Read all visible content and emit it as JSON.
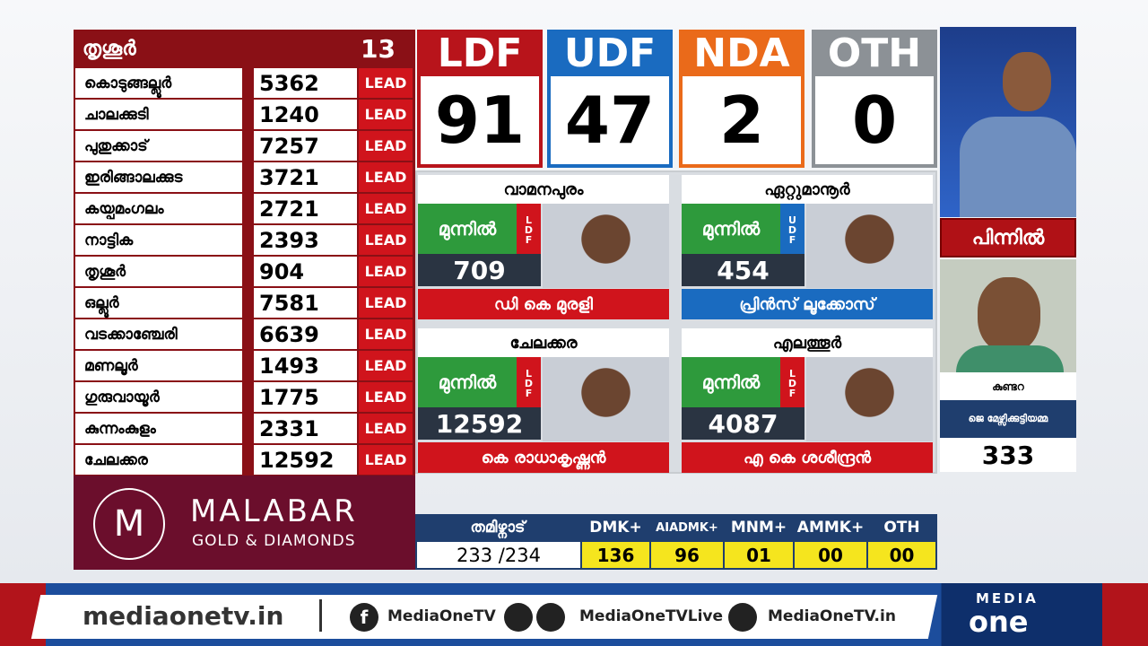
{
  "district": {
    "name": "തൃശൂർ",
    "count": "13",
    "rows": [
      {
        "name": "കൊടുങ്ങല്ലൂർ",
        "margin": "5362",
        "status": "LEAD"
      },
      {
        "name": "ചാലക്കുടി",
        "margin": "1240",
        "status": "LEAD"
      },
      {
        "name": "പുതുക്കാട്",
        "margin": "7257",
        "status": "LEAD"
      },
      {
        "name": "ഇരിങ്ങാലക്കുട",
        "margin": "3721",
        "status": "LEAD"
      },
      {
        "name": "കയ്പമംഗലം",
        "margin": "2721",
        "status": "LEAD"
      },
      {
        "name": "നാട്ടിക",
        "margin": "2393",
        "status": "LEAD"
      },
      {
        "name": "തൃശൂർ",
        "margin": "904",
        "status": "LEAD"
      },
      {
        "name": "ഒല്ലൂർ",
        "margin": "7581",
        "status": "LEAD"
      },
      {
        "name": "വടക്കാഞ്ചേരി",
        "margin": "6639",
        "status": "LEAD"
      },
      {
        "name": "മണലൂർ",
        "margin": "1493",
        "status": "LEAD"
      },
      {
        "name": "ഗുരുവായൂർ",
        "margin": "1775",
        "status": "LEAD"
      },
      {
        "name": "കുന്നംകുളം",
        "margin": "2331",
        "status": "LEAD"
      },
      {
        "name": "ചേലക്കര",
        "margin": "12592",
        "status": "LEAD"
      }
    ]
  },
  "alliances": [
    {
      "name": "LDF",
      "seats": "91"
    },
    {
      "name": "UDF",
      "seats": "47"
    },
    {
      "name": "NDA",
      "seats": "2"
    },
    {
      "name": "OTH",
      "seats": "0"
    }
  ],
  "highlights": [
    {
      "constituency": "വാമനപുരം",
      "status": "മുന്നിൽ",
      "party": "LDF",
      "margin": "709",
      "candidate": "ഡി കെ മുരളി"
    },
    {
      "constituency": "ഏറ്റുമാനൂർ",
      "status": "മുന്നിൽ",
      "party": "UDF",
      "margin": "454",
      "candidate": "പ്രിൻസ് ലൂക്കോസ്"
    },
    {
      "constituency": "ചേലക്കര",
      "status": "മുന്നിൽ",
      "party": "LDF",
      "margin": "12592",
      "candidate": "കെ രാധാകൃഷ്ണൻ"
    },
    {
      "constituency": "എലത്തൂർ",
      "status": "മുന്നിൽ",
      "party": "LDF",
      "margin": "4087",
      "candidate": "എ കെ ശശീന്ദ്രൻ"
    }
  ],
  "trailing": {
    "label": "പിന്നിൽ",
    "constituency": "കുണ്ടറ",
    "candidate": "ജെ മേഴ്സിക്കുട്ടിയമ്മ",
    "margin": "333"
  },
  "sponsor": {
    "name": "MALABAR",
    "sub": "GOLD & DIAMONDS"
  },
  "tamilnadu": {
    "name": "തമിഴ്നാട്",
    "counted": "233 /234",
    "parties": [
      {
        "name": "DMK+",
        "seats": "136"
      },
      {
        "name": "AIADMK+",
        "seats": "96"
      },
      {
        "name": "MNM+",
        "seats": "01"
      },
      {
        "name": "AMMK+",
        "seats": "00"
      },
      {
        "name": "OTH",
        "seats": "00"
      }
    ]
  },
  "footer": {
    "website": "mediaonetv.in",
    "facebook": "MediaOneTV",
    "youtube": "MediaOneTVLive",
    "instagram": "MediaOneTV.in",
    "brand_top": "MEDIA",
    "brand_bottom": "one"
  }
}
